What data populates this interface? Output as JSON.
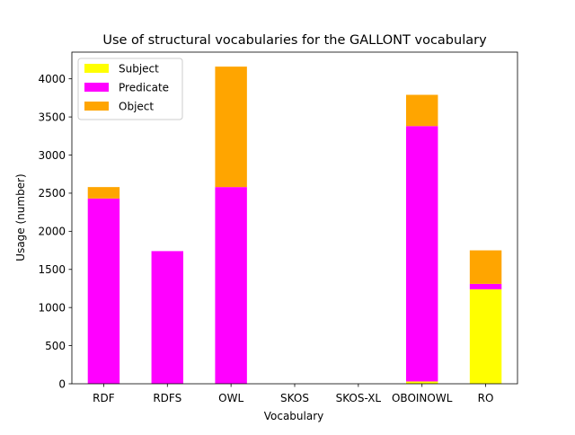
{
  "chart_data": {
    "type": "bar",
    "stacked": true,
    "title": "Use of structural vocabularies for the GALLONT vocabulary",
    "xlabel": "Vocabulary",
    "ylabel": "Usage (number)",
    "categories": [
      "RDF",
      "RDFS",
      "OWL",
      "SKOS",
      "SKOS-XL",
      "OBOINOWL",
      "RO"
    ],
    "ylim": [
      0,
      4350
    ],
    "yticks": [
      0,
      500,
      1000,
      1500,
      2000,
      2500,
      3000,
      3500,
      4000
    ],
    "grid": false,
    "legend_position": "top-left",
    "series": [
      {
        "name": "Subject",
        "color": "#ffff00",
        "values": [
          0,
          0,
          0,
          0,
          0,
          30,
          1240
        ]
      },
      {
        "name": "Predicate",
        "color": "#ff00ff",
        "values": [
          2430,
          1740,
          2580,
          0,
          0,
          3350,
          70
        ]
      },
      {
        "name": "Object",
        "color": "#ffa500",
        "values": [
          150,
          0,
          1580,
          0,
          0,
          410,
          440
        ]
      }
    ]
  }
}
